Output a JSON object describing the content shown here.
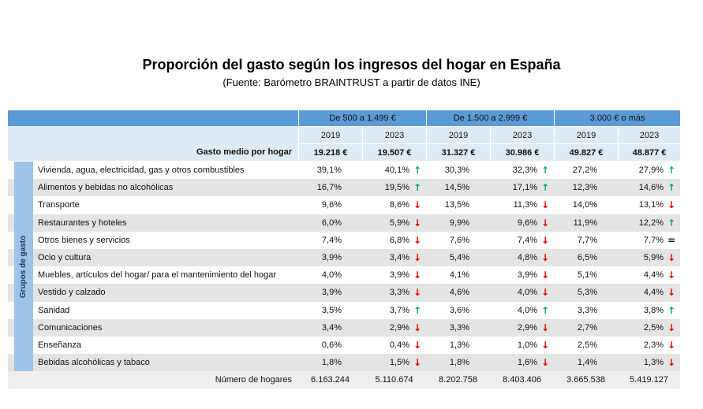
{
  "title": "Proporción del gasto según los ingresos del hogar en España",
  "subtitle": "(Fuente: Barómetro BRAINTRUST a partir de datos INE)",
  "table": {
    "groups": [
      "De 500 a 1.499 €",
      "De 1.500 a 2.999 €",
      "3.000 € o más"
    ],
    "years": [
      "2019",
      "2023",
      "2019",
      "2023",
      "2019",
      "2023"
    ],
    "average_label": "Gasto medio por hogar",
    "average": [
      "19.218 €",
      "19.507 €",
      "31.327 €",
      "30.986 €",
      "49.827 €",
      "48.877 €"
    ],
    "side_label": "Grupos de gasto",
    "rows": [
      {
        "label": "Vivienda, agua, electricidad, gas y otros combustibles",
        "values": [
          "39,1%",
          "40,1%",
          "30,3%",
          "32,3%",
          "27,2%",
          "27,9%"
        ],
        "trends": [
          "↑",
          "↑",
          "↑"
        ]
      },
      {
        "label": "Alimentos y bebidas no alcohólicas",
        "values": [
          "16,7%",
          "19,5%",
          "14,5%",
          "17,1%",
          "12,3%",
          "14,6%"
        ],
        "trends": [
          "↑",
          "↑",
          "↑"
        ]
      },
      {
        "label": "Transporte",
        "values": [
          "9,6%",
          "8,6%",
          "13,5%",
          "11,3%",
          "14,0%",
          "13,1%"
        ],
        "trends": [
          "↓",
          "↓",
          "↓"
        ]
      },
      {
        "label": "Restaurantes y hoteles",
        "values": [
          "6,0%",
          "5,9%",
          "9,9%",
          "9,6%",
          "11,9%",
          "12,2%"
        ],
        "trends": [
          "↓",
          "↓",
          "↑"
        ]
      },
      {
        "label": "Otros bienes y servicios",
        "values": [
          "7,4%",
          "6,8%",
          "7,6%",
          "7,4%",
          "7,7%",
          "7,7%"
        ],
        "trends": [
          "↓",
          "↓",
          "="
        ]
      },
      {
        "label": "Ocio y cultura",
        "values": [
          "3,9%",
          "3,4%",
          "5,4%",
          "4,8%",
          "6,5%",
          "5,9%"
        ],
        "trends": [
          "↓",
          "↓",
          "↓"
        ]
      },
      {
        "label": "Muebles, artículos del hogar/ para el mantenimiento del hogar",
        "values": [
          "4,0%",
          "3,9%",
          "4,1%",
          "3,9%",
          "5,1%",
          "4,4%"
        ],
        "trends": [
          "↓",
          "↓",
          "↓"
        ]
      },
      {
        "label": "Vestido y calzado",
        "values": [
          "3,9%",
          "3,3%",
          "4,6%",
          "4,0%",
          "5,3%",
          "4,4%"
        ],
        "trends": [
          "↓",
          "↓",
          "↓"
        ]
      },
      {
        "label": "Sanidad",
        "values": [
          "3,5%",
          "3,7%",
          "3,6%",
          "4,0%",
          "3,3%",
          "3,8%"
        ],
        "trends": [
          "↑",
          "↑",
          "↑"
        ]
      },
      {
        "label": "Comunicaciones",
        "values": [
          "3,4%",
          "2,9%",
          "3,3%",
          "2,9%",
          "2,7%",
          "2,5%"
        ],
        "trends": [
          "↓",
          "↓",
          "↓"
        ]
      },
      {
        "label": "Enseñanza",
        "values": [
          "0,6%",
          "0,4%",
          "1,3%",
          "1,0%",
          "2,5%",
          "2,3%"
        ],
        "trends": [
          "↓",
          "↓",
          "↓"
        ]
      },
      {
        "label": "Bebidas alcohólicas y tabaco",
        "values": [
          "1,8%",
          "1,5%",
          "1,8%",
          "1,6%",
          "1,4%",
          "1,3%"
        ],
        "trends": [
          "↓",
          "↓",
          "↓"
        ]
      }
    ],
    "households_label": "Número de hogares",
    "households": [
      "6.163.244",
      "5.110.674",
      "8.202.758",
      "8.403.406",
      "3.665.538",
      "5.419.127"
    ]
  }
}
